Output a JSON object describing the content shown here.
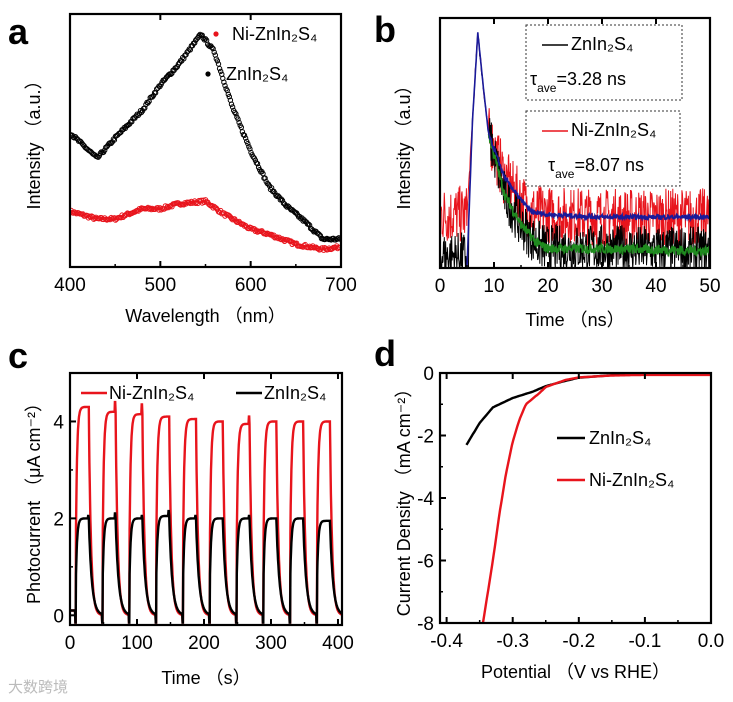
{
  "watermark": "大数跨境",
  "colors": {
    "red": "#e8141c",
    "black": "#000000",
    "blue": "#1a1a9a",
    "green": "#1f8a1f"
  },
  "chart_data": [
    {
      "panel": "a",
      "type": "scatter",
      "xlabel": "Wavelength （nm）",
      "ylabel": "Intensity （a.u.）",
      "xlim": [
        400,
        700
      ],
      "ylim": [
        0,
        1
      ],
      "xticks": [
        400,
        500,
        600,
        700
      ],
      "legend": "top-right",
      "series": [
        {
          "name": "Ni-ZnIn₂S₄",
          "color": "#e8141c",
          "x": [
            400,
            430,
            450,
            480,
            500,
            520,
            550,
            570,
            600,
            620,
            650,
            680,
            700
          ],
          "y": [
            0.22,
            0.19,
            0.19,
            0.23,
            0.23,
            0.25,
            0.26,
            0.21,
            0.15,
            0.13,
            0.09,
            0.07,
            0.08
          ]
        },
        {
          "name": "ZnIn₂S₄",
          "color": "#000000",
          "x": [
            400,
            415,
            430,
            450,
            480,
            500,
            520,
            545,
            560,
            570,
            580,
            600,
            620,
            640,
            660,
            680,
            700
          ],
          "y": [
            0.53,
            0.48,
            0.43,
            0.51,
            0.62,
            0.72,
            0.8,
            0.92,
            0.85,
            0.74,
            0.63,
            0.46,
            0.32,
            0.24,
            0.18,
            0.11,
            0.11
          ]
        }
      ]
    },
    {
      "panel": "b",
      "type": "line",
      "xlabel": "Time （ns）",
      "ylabel": "Intensity （a.u）",
      "xlim": [
        0,
        50
      ],
      "ylim": [
        0,
        1.03
      ],
      "xticks": [
        0,
        10,
        20,
        30,
        40,
        50
      ],
      "legend": "top-right",
      "annotations": [
        {
          "name": "ZnIn₂S₄",
          "color": "#000000",
          "tau": "τ",
          "sub": "ave",
          "value": "=3.28 ns"
        },
        {
          "name": "Ni-ZnIn₂S₄",
          "color": "#e8141c",
          "tau": "τ",
          "sub": "ave",
          "value": "=8.07 ns"
        }
      ],
      "series": [
        {
          "name": "Ni-ZnIn₂S₄ data",
          "color": "#e8141c",
          "noise": 0.12,
          "x": [
            0,
            5,
            6,
            7,
            8,
            9,
            12,
            15,
            17,
            20,
            30,
            50
          ],
          "y": [
            0.22,
            0.22,
            0.6,
            0.97,
            0.75,
            0.55,
            0.37,
            0.28,
            0.23,
            0.22,
            0.21,
            0.21
          ]
        },
        {
          "name": "ZnIn₂S₄ data",
          "color": "#000000",
          "noise": 0.1,
          "x": [
            0,
            5,
            6,
            7,
            8,
            9,
            12,
            15,
            18,
            20,
            30,
            50
          ],
          "y": [
            0.05,
            0.05,
            0.6,
            0.97,
            0.75,
            0.55,
            0.3,
            0.18,
            0.1,
            0.08,
            0.08,
            0.07
          ]
        },
        {
          "name": "ZnIn₂S₄ fit",
          "color": "#1f8a1f",
          "noise": 0.02,
          "x": [
            9,
            12,
            15,
            18,
            20,
            30,
            50
          ],
          "y": [
            0.55,
            0.3,
            0.18,
            0.1,
            0.08,
            0.08,
            0.07
          ]
        },
        {
          "name": "Ni-ZnIn₂S₄ fit",
          "color": "#1a1a9a",
          "noise": 0.01,
          "x": [
            5,
            6,
            7,
            8,
            9,
            12,
            15,
            17,
            20,
            30,
            50
          ],
          "y": [
            0.0,
            0.6,
            0.97,
            0.75,
            0.55,
            0.37,
            0.28,
            0.23,
            0.22,
            0.21,
            0.21
          ]
        }
      ]
    },
    {
      "panel": "c",
      "type": "line",
      "xlabel": "Time （s）",
      "ylabel": "Photocurrent （μA cm⁻²）",
      "xlim": [
        0,
        406
      ],
      "ylim": [
        -0.2,
        5
      ],
      "xticks": [
        0,
        100,
        200,
        300,
        400
      ],
      "yticks": [
        0,
        2,
        4
      ],
      "legend": "top",
      "light_on_start_s": [
        8,
        48,
        88,
        128,
        168,
        208,
        248,
        288,
        328,
        368
      ],
      "light_on_duration_s": 20,
      "series": [
        {
          "name": "Ni-ZnIn₂S₄",
          "color": "#e8141c",
          "plateaus": [
            4.3,
            4.2,
            4.15,
            4.1,
            4.05,
            4.0,
            3.95,
            4.0,
            4.0,
            4.0
          ],
          "spikes": [
            0,
            4.4,
            4.35,
            0,
            0,
            0,
            4.1,
            0,
            0,
            0
          ]
        },
        {
          "name": "ZnIn₂S₄",
          "color": "#000000",
          "plateaus": [
            2.0,
            2.0,
            2.0,
            2.05,
            2.0,
            2.0,
            2.0,
            2.0,
            2.0,
            1.95
          ],
          "spikes": [
            2.05,
            2.1,
            2.05,
            2.15,
            2.05,
            0,
            2.05,
            0,
            2.0,
            0
          ]
        }
      ]
    },
    {
      "panel": "d",
      "type": "line",
      "xlabel": "Potential （V vs RHE）",
      "ylabel": "Current Density （mA cm⁻²）",
      "xlim": [
        -0.41,
        0
      ],
      "ylim": [
        -8,
        0
      ],
      "xticks": [
        "-0.4",
        "-0.3",
        "-0.2",
        "-0.1",
        "0.0"
      ],
      "yticks": [
        0,
        -2,
        -4,
        -6,
        -8
      ],
      "legend": "center-right",
      "series": [
        {
          "name": "ZnIn₂S₄",
          "color": "#000000",
          "x": [
            -0.37,
            -0.35,
            -0.33,
            -0.3,
            -0.27,
            -0.25,
            -0.22,
            -0.2,
            -0.15,
            -0.1,
            0
          ],
          "y": [
            -2.3,
            -1.6,
            -1.1,
            -0.8,
            -0.6,
            -0.42,
            -0.25,
            -0.15,
            -0.07,
            -0.05,
            -0.05
          ]
        },
        {
          "name": "Ni-ZnIn₂S₄",
          "color": "#e8141c",
          "x": [
            -0.345,
            -0.33,
            -0.32,
            -0.31,
            -0.3,
            -0.29,
            -0.28,
            -0.26,
            -0.25,
            -0.22,
            -0.2,
            -0.15,
            -0.1,
            0
          ],
          "y": [
            -8,
            -6,
            -4.5,
            -3.2,
            -2.2,
            -1.5,
            -1.0,
            -0.65,
            -0.45,
            -0.22,
            -0.14,
            -0.08,
            -0.06,
            -0.06
          ]
        }
      ]
    }
  ]
}
